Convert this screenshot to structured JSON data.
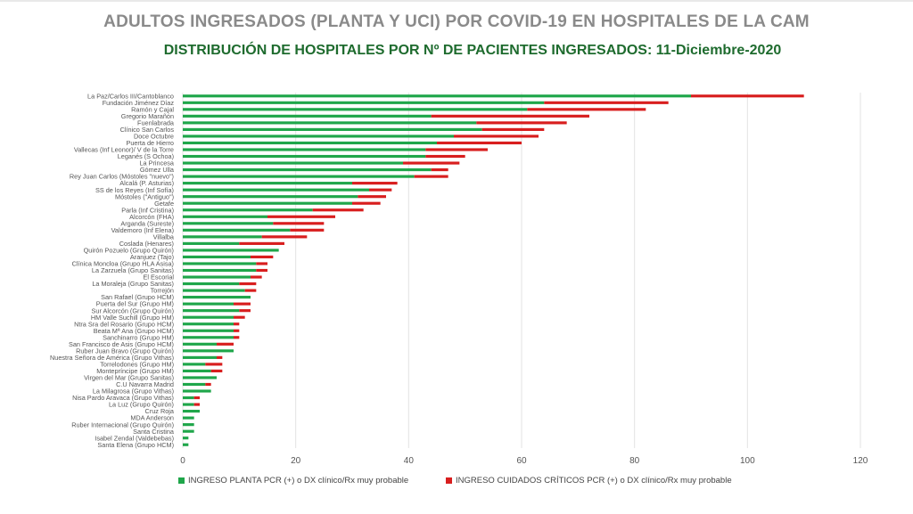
{
  "title": "ADULTOS INGRESADOS (PLANTA Y UCI) POR COVID-19 EN HOSPITALES DE LA CAM",
  "subtitle": "DISTRIBUCIÓN DE HOSPITALES POR Nº DE PACIENTES INGRESADOS: 11-Diciembre-2020",
  "colors": {
    "planta": "#1fa64a",
    "uci": "#d81e1e",
    "grid": "#e3e3e3",
    "axis_text": "#555555"
  },
  "chart_data": {
    "type": "bar",
    "orientation": "horizontal",
    "stacked": true,
    "xlim": [
      0,
      120
    ],
    "xticks": [
      0,
      20,
      40,
      60,
      80,
      100,
      120
    ],
    "grid": true,
    "legend_position": "bottom",
    "categories": [
      "La Paz/Carlos III/Cantoblanco",
      "Fundación Jiménez Díaz",
      "Ramón y Cajal",
      "Gregorio Marañón",
      "Fuenlabrada",
      "Clínico San Carlos",
      "Doce Octubre",
      "Puerta de Hierro",
      "Vallecas (Inf Leonor)/ V de la Torre",
      "Leganés (S Ochoa)",
      "La Princesa",
      "Gómez Ulla",
      "Rey Juan Carlos (Móstoles \"nuevo\")",
      "Alcalá (P. Asturias)",
      "SS de los Reyes (Inf Sofía)",
      "Móstoles (\"Antiguo\")",
      "Getafe",
      "Parla (Inf Cristina)",
      "Alcorcón (FHA)",
      "Arganda (Sureste)",
      "Valdemoro (Inf Elena)",
      "Villalba",
      "Coslada (Henares)",
      "Quirón Pozuelo (Grupo Quirón)",
      "Aranjuez (Tajo)",
      "Clínica Moncloa (Grupo HLA Asisa)",
      "La Zarzuela (Grupo Sanitas)",
      "El Escorial",
      "La Moraleja (Grupo Sanitas)",
      "Torrejón",
      "San Rafael (Grupo HCM)",
      "Puerta del Sur (Grupo HM)",
      "Sur Alcorcón (Grupo Quirón)",
      "HM Valle Suchill (Grupo HM)",
      "Ntra Sra del Rosario (Grupo HCM)",
      "Beata Mª Ana (Grupo HCM)",
      "Sanchinarro (Grupo HM)",
      "San Francisco de Asis (Grupo HCM)",
      "Ruber Juan Bravo (Grupo Quirón)",
      "Nuestra Señora de América (Grupo Vithas)",
      "Torrelodones (Grupo HM)",
      "Montepríncipe (Grupo HM)",
      "Virgen del Mar (Grupo Sanitas)",
      "C.U Navarra Madrid",
      "La Milagrosa (Grupo Vithas)",
      "Nisa Pardo Aravaca (Grupo Vithas)",
      "La Luz (Grupo Quirón)",
      "Cruz Roja",
      "MDA Anderson",
      "Ruber Internacional (Grupo Quirón)",
      "Santa Cristina",
      "Isabel Zendal (Valdebebas)",
      "Santa Elena (Grupo HCM)"
    ],
    "series": [
      {
        "name": "INGRESO PLANTA PCR (+) o DX clínico/Rx muy probable",
        "values": [
          90,
          64,
          61,
          44,
          52,
          53,
          48,
          45,
          43,
          43,
          39,
          44,
          41,
          30,
          33,
          31,
          30,
          23,
          15,
          16,
          19,
          14,
          10,
          17,
          12,
          13,
          13,
          12,
          10,
          11,
          12,
          9,
          10,
          9,
          9,
          9,
          9,
          6,
          9,
          6,
          4,
          5,
          6,
          4,
          5,
          2,
          2,
          3,
          2,
          2,
          2,
          1,
          1
        ]
      },
      {
        "name": "INGRESO CUIDADOS CRÍTICOS PCR (+) o DX clínico/Rx muy probable",
        "values": [
          20,
          22,
          21,
          28,
          16,
          11,
          15,
          15,
          11,
          7,
          10,
          3,
          6,
          8,
          4,
          5,
          5,
          9,
          12,
          9,
          6,
          8,
          8,
          0,
          4,
          2,
          2,
          2,
          3,
          2,
          0,
          3,
          2,
          2,
          1,
          1,
          1,
          3,
          0,
          1,
          3,
          2,
          0,
          1,
          0,
          1,
          1,
          0,
          0,
          0,
          0,
          0,
          0
        ]
      }
    ]
  }
}
